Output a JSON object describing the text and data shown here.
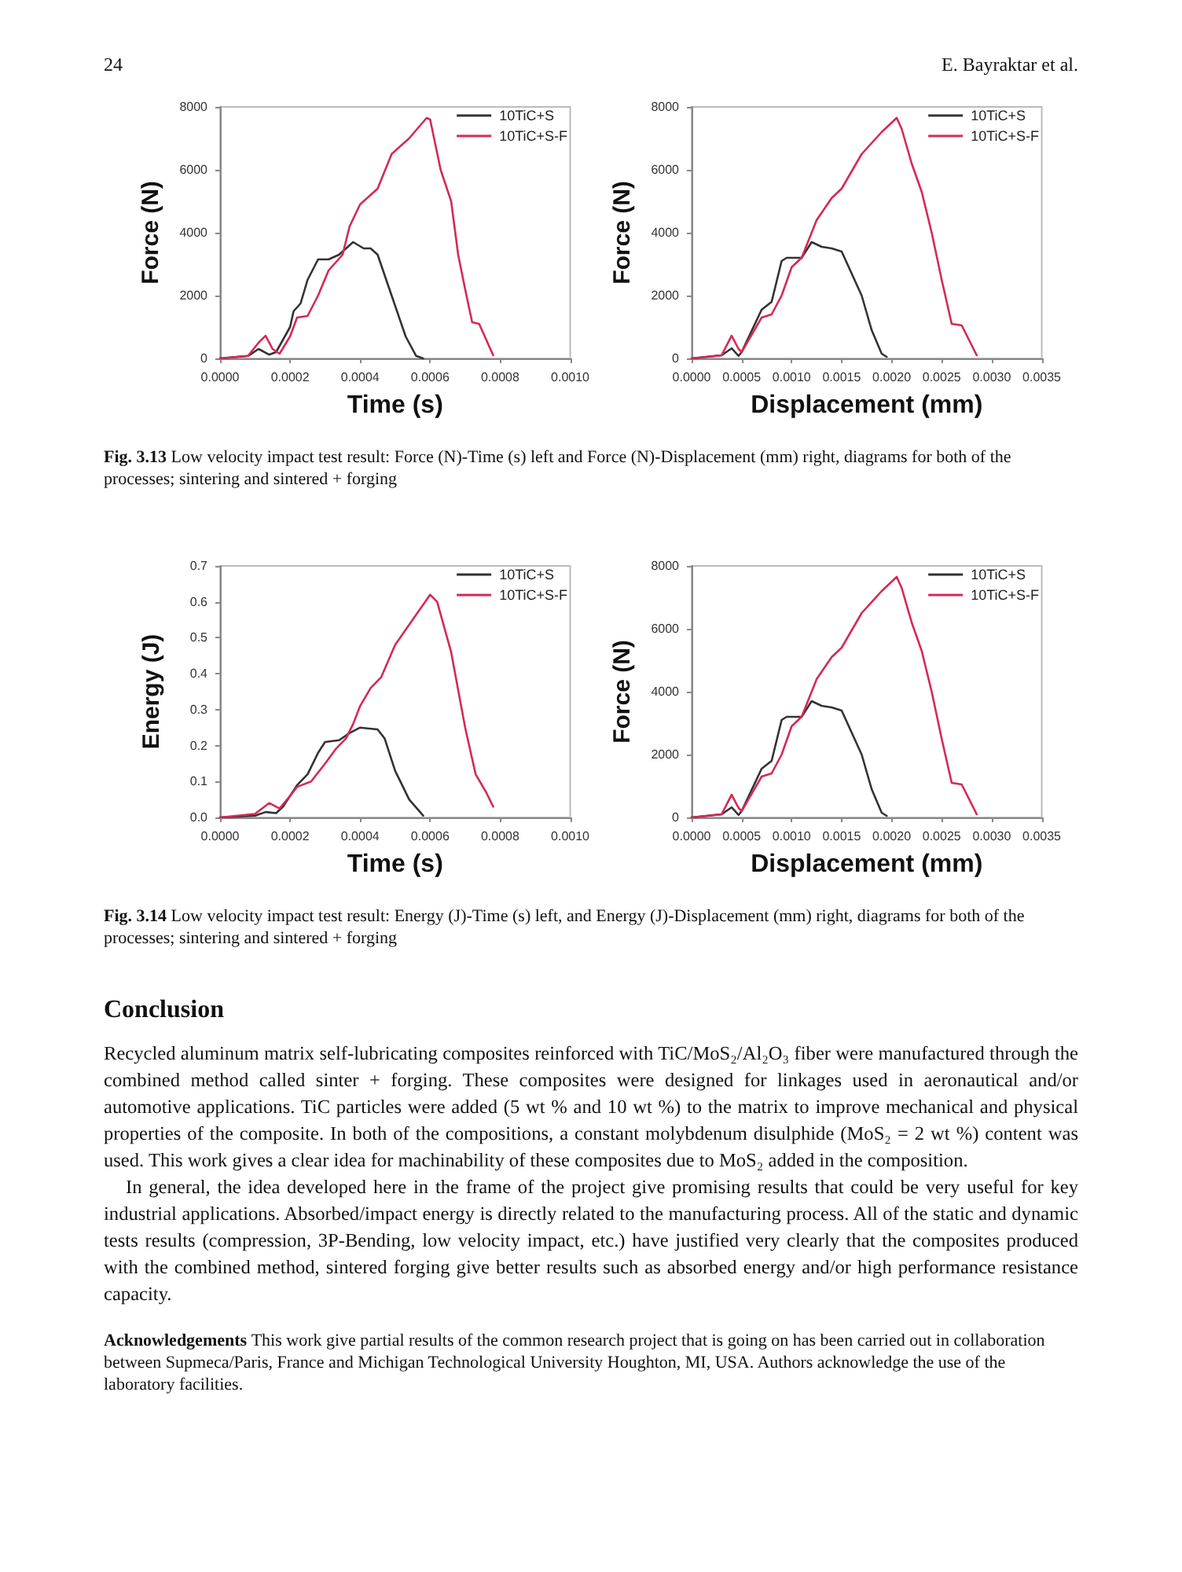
{
  "chart_data": [
    {
      "type": "line",
      "xlabel": "Time (s)",
      "ylabel": "Force (N)",
      "xlim": [
        0,
        0.001
      ],
      "ylim": [
        0,
        8000
      ],
      "xticks": [
        {
          "value": 0,
          "label": "0.0000"
        },
        {
          "value": 0.0002,
          "label": "0.0002"
        },
        {
          "value": 0.0004,
          "label": "0.0004"
        },
        {
          "value": 0.0006,
          "label": "0.0006"
        },
        {
          "value": 0.0008,
          "label": "0.0008"
        },
        {
          "value": 0.001,
          "label": "0.0010"
        }
      ],
      "yticks": [
        0,
        2000,
        4000,
        6000,
        8000
      ],
      "grid": false,
      "legend": "top right",
      "marker": "none",
      "line_style": "solid",
      "annotations": [
        "24",
        "E. Bayraktar et al."
      ],
      "series": [
        {
          "name": "10TiC+S",
          "color": "#333333",
          "x": [
            0,
            8e-05,
            0.00011,
            0.00014,
            0.00016,
            0.0002,
            0.00021,
            0.00023,
            0.00025,
            0.00028,
            0.00031,
            0.00034,
            0.00038,
            0.00041,
            0.00043,
            0.00045,
            0.00049,
            0.00053,
            0.00056,
            0.00058
          ],
          "values": [
            0,
            80,
            300,
            120,
            200,
            1000,
            1500,
            1750,
            2500,
            3150,
            3150,
            3300,
            3700,
            3500,
            3500,
            3300,
            2000,
            700,
            80,
            0
          ]
        },
        {
          "name": "10TiC+S-F",
          "color": "#d42a55",
          "x": [
            0,
            8e-05,
            0.00011,
            0.00013,
            0.00015,
            0.00017,
            0.0002,
            0.00022,
            0.00025,
            0.00028,
            0.00031,
            0.00035,
            0.00037,
            0.0004,
            0.00043,
            0.00045,
            0.00049,
            0.00054,
            0.00059,
            0.0006,
            0.00063,
            0.00066,
            0.00068,
            0.0007,
            0.00072,
            0.00074,
            0.00076,
            0.00078
          ],
          "values": [
            0,
            80,
            500,
            720,
            300,
            150,
            700,
            1300,
            1350,
            2000,
            2800,
            3300,
            4200,
            4900,
            5200,
            5400,
            6500,
            7000,
            7650,
            7600,
            6000,
            5000,
            3300,
            2200,
            1150,
            1100,
            600,
            100
          ]
        }
      ]
    },
    {
      "type": "line",
      "xlabel": "Displacement (mm)",
      "ylabel": "Force (N)",
      "xlim": [
        0,
        0.0035
      ],
      "ylim": [
        0,
        8000
      ],
      "xticks": [
        {
          "value": 0,
          "label": "0.0000"
        },
        {
          "value": 0.0005,
          "label": "0.0005"
        },
        {
          "value": 0.001,
          "label": "0.0010"
        },
        {
          "value": 0.0015,
          "label": "0.0015"
        },
        {
          "value": 0.002,
          "label": "0.0020"
        },
        {
          "value": 0.0025,
          "label": "0.0025"
        },
        {
          "value": 0.003,
          "label": "0.0030"
        },
        {
          "value": 0.0035,
          "label": "0.0035"
        }
      ],
      "yticks": [
        0,
        2000,
        4000,
        6000,
        8000
      ],
      "grid": false,
      "legend": "top right",
      "marker": "none",
      "line_style": "solid",
      "annotations": [
        "Fig. 3.13 Low velocity impact test result: Force (N)-Time (s) left and Force (N)-Displacement (mm) right, diagrams for both of the processes; sintering and sintered + forging"
      ],
      "series": [
        {
          "name": "10TiC+S",
          "color": "#333333",
          "x": [
            0,
            0.0003,
            0.0004,
            0.00047,
            0.0005,
            0.0007,
            0.0008,
            0.0009,
            0.00095,
            0.0011,
            0.0012,
            0.0013,
            0.0014,
            0.0015,
            0.0017,
            0.0018,
            0.0019,
            0.00195
          ],
          "values": [
            0,
            100,
            320,
            80,
            200,
            1550,
            1800,
            3100,
            3200,
            3200,
            3700,
            3550,
            3500,
            3400,
            2000,
            900,
            150,
            50
          ]
        },
        {
          "name": "10TiC+S-F",
          "color": "#d42a55",
          "x": [
            0,
            0.0003,
            0.0004,
            0.00047,
            0.0005,
            0.0007,
            0.0008,
            0.0009,
            0.001,
            0.0011,
            0.00125,
            0.0014,
            0.0015,
            0.0017,
            0.0019,
            0.00205,
            0.0021,
            0.0022,
            0.0023,
            0.0024,
            0.0025,
            0.0026,
            0.0027,
            0.00285
          ],
          "values": [
            0,
            100,
            720,
            300,
            200,
            1300,
            1400,
            2000,
            2900,
            3200,
            4400,
            5100,
            5400,
            6500,
            7200,
            7650,
            7300,
            6200,
            5300,
            4000,
            2500,
            1100,
            1050,
            100
          ]
        }
      ]
    },
    {
      "type": "line",
      "xlabel": "Time (s)",
      "ylabel": "Energy (J)",
      "xlim": [
        0,
        0.001
      ],
      "ylim": [
        0,
        0.7
      ],
      "xticks": [
        {
          "value": 0,
          "label": "0.0000"
        },
        {
          "value": 0.0002,
          "label": "0.0002"
        },
        {
          "value": 0.0004,
          "label": "0.0004"
        },
        {
          "value": 0.0006,
          "label": "0.0006"
        },
        {
          "value": 0.0008,
          "label": "0.0008"
        },
        {
          "value": 0.001,
          "label": "0.0010"
        }
      ],
      "yticks": [
        {
          "value": 0,
          "label": "0.0"
        },
        0.1,
        0.2,
        0.3,
        0.4,
        0.5,
        0.6,
        0.7
      ],
      "grid": false,
      "legend": "top right",
      "marker": "none",
      "line_style": "solid",
      "series": [
        {
          "name": "10TiC+S",
          "color": "#333333",
          "x": [
            0,
            0.0001,
            0.00013,
            0.00016,
            0.00018,
            0.00022,
            0.00025,
            0.00028,
            0.0003,
            0.00034,
            0.00037,
            0.0004,
            0.00045,
            0.00047,
            0.0005,
            0.00054,
            0.00058
          ],
          "values": [
            0,
            0.005,
            0.015,
            0.012,
            0.03,
            0.09,
            0.12,
            0.18,
            0.21,
            0.215,
            0.235,
            0.25,
            0.245,
            0.22,
            0.13,
            0.05,
            0.005
          ]
        },
        {
          "name": "10TiC+S-F",
          "color": "#d42a55",
          "x": [
            0,
            0.0001,
            0.00014,
            0.00017,
            0.0002,
            0.00022,
            0.00026,
            0.0003,
            0.00033,
            0.00036,
            0.00038,
            0.0004,
            0.00043,
            0.00046,
            0.0005,
            0.00055,
            0.0006,
            0.00062,
            0.00066,
            0.0007,
            0.00073,
            0.00076,
            0.00078
          ],
          "values": [
            0,
            0.01,
            0.04,
            0.025,
            0.06,
            0.085,
            0.1,
            0.15,
            0.19,
            0.22,
            0.26,
            0.31,
            0.36,
            0.39,
            0.48,
            0.55,
            0.62,
            0.6,
            0.46,
            0.25,
            0.12,
            0.07,
            0.03
          ]
        }
      ]
    },
    {
      "type": "line",
      "xlabel": "Displacement (mm)",
      "ylabel": "Force (N)",
      "xlim": [
        0,
        0.0035
      ],
      "ylim": [
        0,
        8000
      ],
      "xticks": [
        {
          "value": 0,
          "label": "0.0000"
        },
        {
          "value": 0.0005,
          "label": "0.0005"
        },
        {
          "value": 0.001,
          "label": "0.0010"
        },
        {
          "value": 0.0015,
          "label": "0.0015"
        },
        {
          "value": 0.002,
          "label": "0.0020"
        },
        {
          "value": 0.0025,
          "label": "0.0025"
        },
        {
          "value": 0.003,
          "label": "0.0030"
        },
        {
          "value": 0.0035,
          "label": "0.0035"
        }
      ],
      "yticks": [
        0,
        2000,
        4000,
        6000,
        8000
      ],
      "grid": false,
      "legend": "top right",
      "marker": "none",
      "line_style": "solid",
      "annotations": [
        "Fig. 3.14 Low velocity impact test result: Energy (J)-Time (s) left, and Energy (J)-Displacement (mm) right, diagrams for both of the processes; sintering and sintered + forging",
        "Conclusion",
        "Recycled aluminum matrix self-lubricating composites reinforced with TiC/MoS₂/Al₂O₃ fiber were manufactured through the combined method called sinter + forging. These composites were designed for linkages used in aeronautical and/or automotive applications. TiC particles were added (5 wt % and 10 wt %) to the matrix to improve mechanical and physical properties of the composite. In both of the compositions, a constant molybdenum disulphide (MoS₂ = 2 wt %) content was used. This work gives a clear idea for machinability of these composites due to MoS₂ added in the composition.",
        "In general, the idea developed here in the frame of the project give promising results that could be very useful for key industrial applications. Absorbed/impact energy is directly related to the manufacturing process. All of the static and dynamic tests results (compression, 3P-Bending, low velocity impact, etc.) have justified very clearly that the composites produced with the combined method, sintered forging give better results such as absorbed energy and/or high performance resistance capacity.",
        "Acknowledgements This work give partial results of the common research project that is going on has been carried out in collaboration between Supmeca/Paris, France and Michigan Technological University Houghton, MI, USA. Authors acknowledge the use of the laboratory facilities."
      ],
      "series": [
        {
          "name": "10TiC+S",
          "color": "#333333",
          "x": [
            0,
            0.0003,
            0.0004,
            0.00047,
            0.0005,
            0.0007,
            0.0008,
            0.0009,
            0.00095,
            0.0011,
            0.0012,
            0.0013,
            0.0014,
            0.0015,
            0.0017,
            0.0018,
            0.0019,
            0.00195
          ],
          "values": [
            0,
            100,
            320,
            80,
            200,
            1550,
            1800,
            3100,
            3200,
            3200,
            3700,
            3550,
            3500,
            3400,
            2000,
            900,
            150,
            50
          ]
        },
        {
          "name": "10TiC+S-F",
          "color": "#d42a55",
          "x": [
            0,
            0.0003,
            0.0004,
            0.00047,
            0.0005,
            0.0007,
            0.0008,
            0.0009,
            0.001,
            0.0011,
            0.00125,
            0.0014,
            0.0015,
            0.0017,
            0.0019,
            0.00205,
            0.0021,
            0.0022,
            0.0023,
            0.0024,
            0.0025,
            0.0026,
            0.0027,
            0.00285
          ],
          "values": [
            0,
            100,
            720,
            300,
            200,
            1300,
            1400,
            2000,
            2900,
            3200,
            4400,
            5100,
            5400,
            6500,
            7200,
            7650,
            7300,
            6200,
            5300,
            4000,
            2500,
            1100,
            1050,
            100
          ]
        }
      ]
    }
  ]
}
